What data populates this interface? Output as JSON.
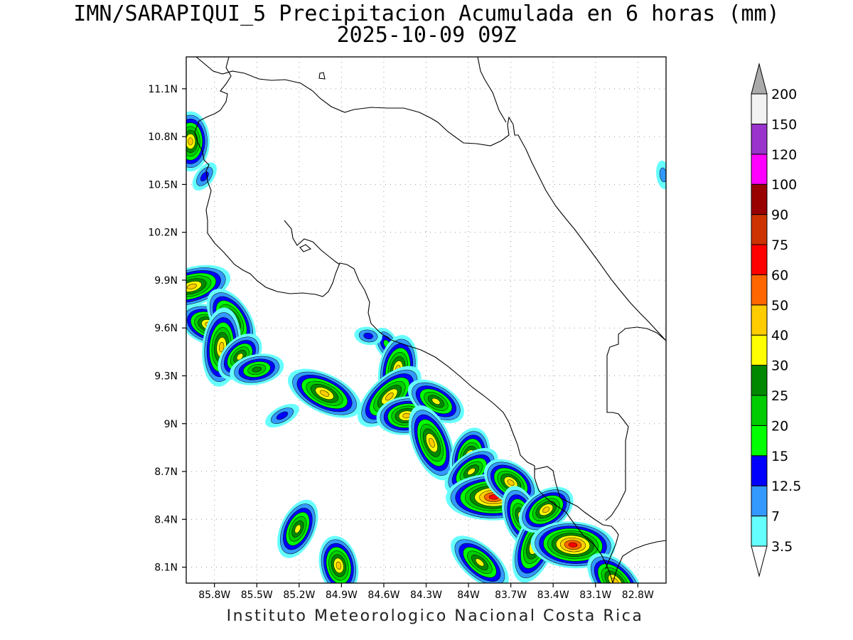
{
  "title": {
    "line1": "IMN/SARAPIQUI_5 Precipitacion Acumulada en 6 horas (mm)",
    "line2": "2025-10-09 09Z"
  },
  "credit": "Instituto Meteorologico Nacional Costa Rica",
  "axes": {
    "lat_labels": [
      "11.1N",
      "10.8N",
      "10.5N",
      "10.2N",
      "9.9N",
      "9.6N",
      "9.3N",
      "9N",
      "8.7N",
      "8.4N",
      "8.1N"
    ],
    "lon_labels": [
      "85.8W",
      "85.5W",
      "85.2W",
      "84.9W",
      "84.6W",
      "84.3W",
      "84W",
      "83.7W",
      "83.4W",
      "83.1W",
      "82.8W"
    ]
  },
  "colorbar": {
    "labels": [
      "3.5",
      "7",
      "12.5",
      "15",
      "20",
      "25",
      "30",
      "40",
      "50",
      "60",
      "75",
      "90",
      "100",
      "120",
      "150",
      "200"
    ],
    "colors": [
      "#66ffff",
      "#3399ff",
      "#0000ff",
      "#00ff00",
      "#00cc00",
      "#008800",
      "#ffff00",
      "#ffcc00",
      "#ff6600",
      "#ff0000",
      "#cc3300",
      "#990000",
      "#ff00ff",
      "#9933cc",
      "#f2f2f2",
      "#aaaaaa"
    ]
  },
  "chart_data": {
    "type": "heatmap",
    "variable": "Precipitacion Acumulada en 6 horas (mm)",
    "valid_time": "2025-10-09 09Z",
    "lon_range": [
      -86.0,
      -82.6
    ],
    "lat_range": [
      8.0,
      11.3
    ],
    "levels": [
      3.5,
      7,
      12.5,
      15,
      20,
      25,
      30,
      40,
      50,
      60,
      75,
      90,
      100,
      120,
      150,
      200
    ],
    "cells": [
      {
        "lon": -85.97,
        "lat": 10.77,
        "max": 40
      },
      {
        "lon": -85.87,
        "lat": 10.55,
        "max": 12.5
      },
      {
        "lon": -85.96,
        "lat": 9.86,
        "max": 40
      },
      {
        "lon": -85.84,
        "lat": 9.62,
        "max": 40
      },
      {
        "lon": -85.68,
        "lat": 9.65,
        "max": 40
      },
      {
        "lon": -85.75,
        "lat": 9.48,
        "max": 40
      },
      {
        "lon": -85.62,
        "lat": 9.42,
        "max": 30
      },
      {
        "lon": -85.5,
        "lat": 9.34,
        "max": 25
      },
      {
        "lon": -85.02,
        "lat": 9.19,
        "max": 40
      },
      {
        "lon": -84.58,
        "lat": 9.5,
        "max": 15
      },
      {
        "lon": -84.5,
        "lat": 9.34,
        "max": 40
      },
      {
        "lon": -84.56,
        "lat": 9.17,
        "max": 40
      },
      {
        "lon": -84.44,
        "lat": 9.05,
        "max": 40
      },
      {
        "lon": -84.23,
        "lat": 9.14,
        "max": 30
      },
      {
        "lon": -84.26,
        "lat": 8.88,
        "max": 40
      },
      {
        "lon": -83.99,
        "lat": 8.79,
        "max": 40
      },
      {
        "lon": -83.98,
        "lat": 8.7,
        "max": 30
      },
      {
        "lon": -83.82,
        "lat": 8.54,
        "max": 60
      },
      {
        "lon": -83.7,
        "lat": 8.63,
        "max": 40
      },
      {
        "lon": -83.63,
        "lat": 8.42,
        "max": 30
      },
      {
        "lon": -83.53,
        "lat": 8.24,
        "max": 40
      },
      {
        "lon": -83.45,
        "lat": 8.46,
        "max": 40
      },
      {
        "lon": -83.26,
        "lat": 8.24,
        "max": 60
      },
      {
        "lon": -83.92,
        "lat": 8.13,
        "max": 30
      },
      {
        "lon": -84.92,
        "lat": 8.11,
        "max": 40
      },
      {
        "lon": -85.21,
        "lat": 8.34,
        "max": 30
      },
      {
        "lon": -85.32,
        "lat": 9.05,
        "max": 12.5
      },
      {
        "lon": -84.71,
        "lat": 9.55,
        "max": 12.5
      },
      {
        "lon": -82.96,
        "lat": 8.01,
        "max": 40
      },
      {
        "lon": -82.62,
        "lat": 10.56,
        "max": 7
      }
    ]
  },
  "colors": {
    "frame": "#000000",
    "coast": "#000000",
    "grid": "#999999"
  }
}
